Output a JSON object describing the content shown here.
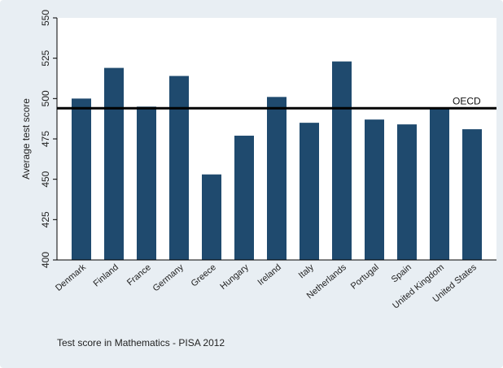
{
  "chart_data": {
    "type": "bar",
    "categories": [
      "Denmark",
      "Finland",
      "France",
      "Germany",
      "Greece",
      "Hungary",
      "Ireland",
      "Italy",
      "Netherlands",
      "Portugal",
      "Spain",
      "United Kingdom",
      "United States"
    ],
    "values": [
      500,
      519,
      495,
      514,
      453,
      477,
      501,
      485,
      523,
      487,
      484,
      494,
      481
    ],
    "ylabel": "Average test score",
    "ylim": [
      400,
      550
    ],
    "yticks": [
      400,
      425,
      450,
      475,
      500,
      525,
      550
    ],
    "reference_line": {
      "label": "OECD",
      "value": 494
    },
    "note": "Test score in Mathematics - PISA 2012",
    "bar_color": "#1f4a6e",
    "grid": false
  }
}
